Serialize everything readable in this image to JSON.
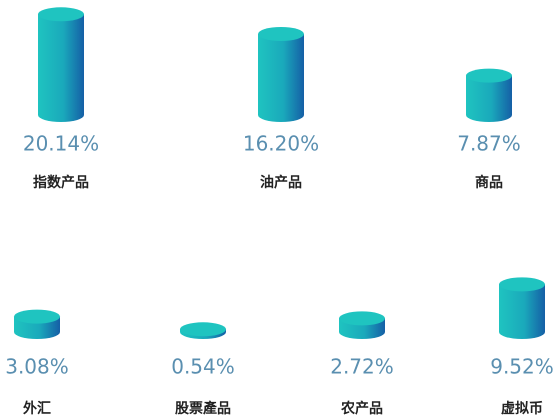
{
  "chart_data": {
    "type": "cylinder",
    "categories": [
      "指数产品",
      "油产品",
      "商品",
      "外汇",
      "股票產品",
      "农产品",
      "虚拟币"
    ],
    "values": [
      20.14,
      16.2,
      7.87,
      3.08,
      0.54,
      2.72,
      9.52
    ],
    "value_labels": [
      "20.14%",
      "16.20%",
      "7.87%",
      "3.08%",
      "0.54%",
      "2.72%",
      "9.52%"
    ],
    "color": "#1fc4c0"
  }
}
